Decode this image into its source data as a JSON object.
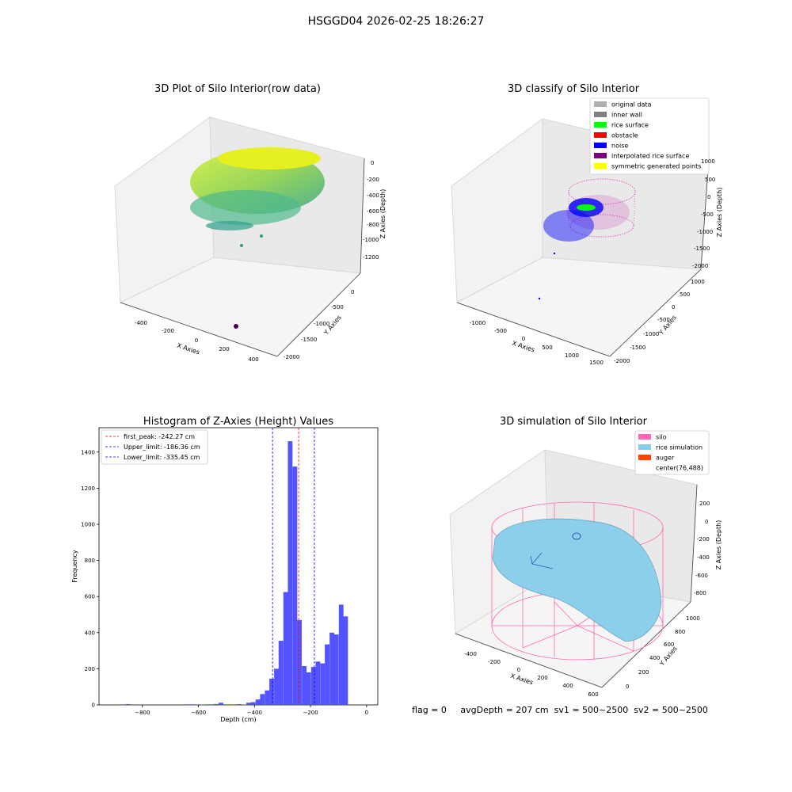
{
  "suptitle": "HSGGD04 2026-02-25 18:26:27",
  "status_line": "flag = 0     avgDepth = 207 cm  sv1 = 500~2500  sv2 = 500~2500",
  "colors": {
    "original_data": "#b0b0b0",
    "inner_wall": "#808080",
    "rice_surface": "#00ff00",
    "obstacle": "#ff0000",
    "noise": "#0000ff",
    "interpolated": "#800080",
    "symmetric": "#ffff00",
    "silo": "#ff69b4",
    "rice_sim": "#87ceeb",
    "auger": "#ff4500",
    "hist_bar": "#4a4aff"
  },
  "chart_data": [
    {
      "type": "scatter",
      "title": "3D Plot of Silo Interior(row data)",
      "xlabel": "X Axies",
      "ylabel": "Y Axies",
      "zlabel": "Z Axies (Depth)",
      "x_ticks": [
        "-400",
        "-200",
        "0",
        "200",
        "400"
      ],
      "y_ticks": [
        "0",
        "-500",
        "-1000",
        "-1500",
        "-2000"
      ],
      "z_ticks": [
        "0",
        "-200",
        "-400",
        "-600",
        "-800",
        "-1000",
        "-1200"
      ]
    },
    {
      "type": "scatter",
      "title": "3D classify of Silo Interior",
      "xlabel": "X Axies",
      "ylabel": "Y Axies",
      "zlabel": "Z Axies (Depth)",
      "x_ticks": [
        "-1000",
        "-500",
        "0",
        "500",
        "1000",
        "1500"
      ],
      "y_ticks": [
        "1000",
        "500",
        "0",
        "-500",
        "-1000",
        "-1500",
        "-2000"
      ],
      "z_ticks": [
        "1000",
        "500",
        "0",
        "-500",
        "-1000",
        "-1500",
        "-2000"
      ],
      "legend": [
        {
          "label": "original data",
          "color": "#b0b0b0"
        },
        {
          "label": "inner wall",
          "color": "#808080"
        },
        {
          "label": "rice surface",
          "color": "#00ff00"
        },
        {
          "label": "obstacle",
          "color": "#ff0000"
        },
        {
          "label": "noise",
          "color": "#0000ff"
        },
        {
          "label": "interpolated rice surface",
          "color": "#800080"
        },
        {
          "label": "symmetric generated points",
          "color": "#ffff00"
        }
      ]
    },
    {
      "type": "bar",
      "title": "Histogram of Z-Axies (Height) Values",
      "xlabel": "Depth (cm)",
      "ylabel": "Frequency",
      "xlim": [
        -955,
        40
      ],
      "ylim": [
        0,
        1535
      ],
      "x_ticks": [
        -800,
        -600,
        -400,
        -200,
        0
      ],
      "y_ticks": [
        0,
        200,
        400,
        600,
        800,
        1000,
        1200,
        1400
      ],
      "bin_width": 16.5,
      "bins": [
        {
          "x": -860,
          "y": 4
        },
        {
          "x": -645,
          "y": 3
        },
        {
          "x": -628,
          "y": 3
        },
        {
          "x": -595,
          "y": 2
        },
        {
          "x": -578,
          "y": 3
        },
        {
          "x": -562,
          "y": 3
        },
        {
          "x": -545,
          "y": 5
        },
        {
          "x": -528,
          "y": 12
        },
        {
          "x": -512,
          "y": 3
        },
        {
          "x": -479,
          "y": 3
        },
        {
          "x": -462,
          "y": 4
        },
        {
          "x": -446,
          "y": 2
        },
        {
          "x": -429,
          "y": 12
        },
        {
          "x": -413,
          "y": 15
        },
        {
          "x": -396,
          "y": 30
        },
        {
          "x": -380,
          "y": 60
        },
        {
          "x": -363,
          "y": 80
        },
        {
          "x": -347,
          "y": 145
        },
        {
          "x": -330,
          "y": 200
        },
        {
          "x": -314,
          "y": 355
        },
        {
          "x": -297,
          "y": 625
        },
        {
          "x": -281,
          "y": 1460
        },
        {
          "x": -264,
          "y": 1320
        },
        {
          "x": -248,
          "y": 470
        },
        {
          "x": -231,
          "y": 215
        },
        {
          "x": -215,
          "y": 180
        },
        {
          "x": -198,
          "y": 210
        },
        {
          "x": -182,
          "y": 240
        },
        {
          "x": -165,
          "y": 230
        },
        {
          "x": -149,
          "y": 335
        },
        {
          "x": -132,
          "y": 400
        },
        {
          "x": -116,
          "y": 390
        },
        {
          "x": -99,
          "y": 555
        },
        {
          "x": -83,
          "y": 490
        }
      ],
      "vlines": [
        {
          "value": -242.27,
          "label": "first_peak: -242.27 cm",
          "color": "#ff0000"
        },
        {
          "value": -186.36,
          "label": "Upper_limit: -186.36 cm",
          "color": "#0000ff"
        },
        {
          "value": -335.45,
          "label": "Lower_limit: -335.45 cm",
          "color": "#0000ff"
        }
      ]
    },
    {
      "type": "scatter",
      "title": "3D simulation of Silo Interior",
      "xlabel": "X Axies",
      "ylabel": "Y Axies",
      "zlabel": "Z Axies (Depth)",
      "x_ticks": [
        "-400",
        "-200",
        "0",
        "200",
        "400",
        "600"
      ],
      "y_ticks": [
        "0",
        "200",
        "400",
        "600",
        "800",
        "1000"
      ],
      "z_ticks": [
        "200",
        "0",
        "-200",
        "-400",
        "-600",
        "-800"
      ],
      "legend": [
        {
          "label": "silo",
          "color": "#ff69b4"
        },
        {
          "label": "rice simulation",
          "color": "#87ceeb"
        },
        {
          "label": "auger",
          "color": "#ff4500"
        },
        {
          "label": "center(76,488)",
          "color": ""
        }
      ]
    }
  ]
}
